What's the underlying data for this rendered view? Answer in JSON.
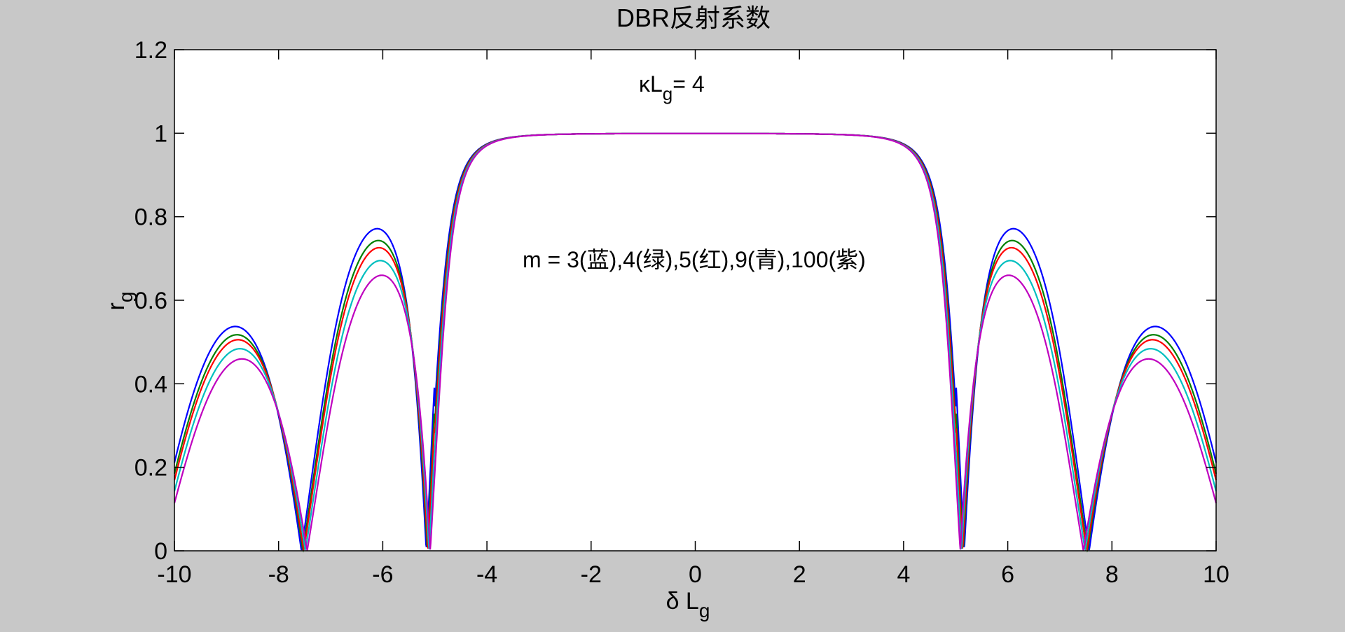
{
  "chart_data": {
    "type": "line",
    "title": "DBR反射系数",
    "xlabel": {
      "main": "δ L",
      "sub": "g"
    },
    "ylabel": {
      "main": "r",
      "sub": "g"
    },
    "xlim": [
      -10,
      10
    ],
    "ylim": [
      0,
      1.2
    ],
    "xticks": [
      -10,
      -8,
      -6,
      -4,
      -2,
      0,
      2,
      4,
      6,
      8,
      10
    ],
    "yticks": [
      0,
      0.2,
      0.4,
      0.6,
      0.8,
      1,
      1.2
    ],
    "grid": false,
    "annotations": {
      "kappa": {
        "main": "κL",
        "sub": "g",
        "tail": "= 4"
      },
      "legend": "m = 3(蓝),4(绿),5(红),9(青),100(紫)"
    },
    "kappa_lg": 4,
    "series": [
      {
        "m": 3,
        "color": "#0000ff"
      },
      {
        "m": 4,
        "color": "#008000"
      },
      {
        "m": 5,
        "color": "#ff0000"
      },
      {
        "m": 9,
        "color": "#00bfbf"
      },
      {
        "m": 100,
        "color": "#bf00bf"
      }
    ]
  }
}
